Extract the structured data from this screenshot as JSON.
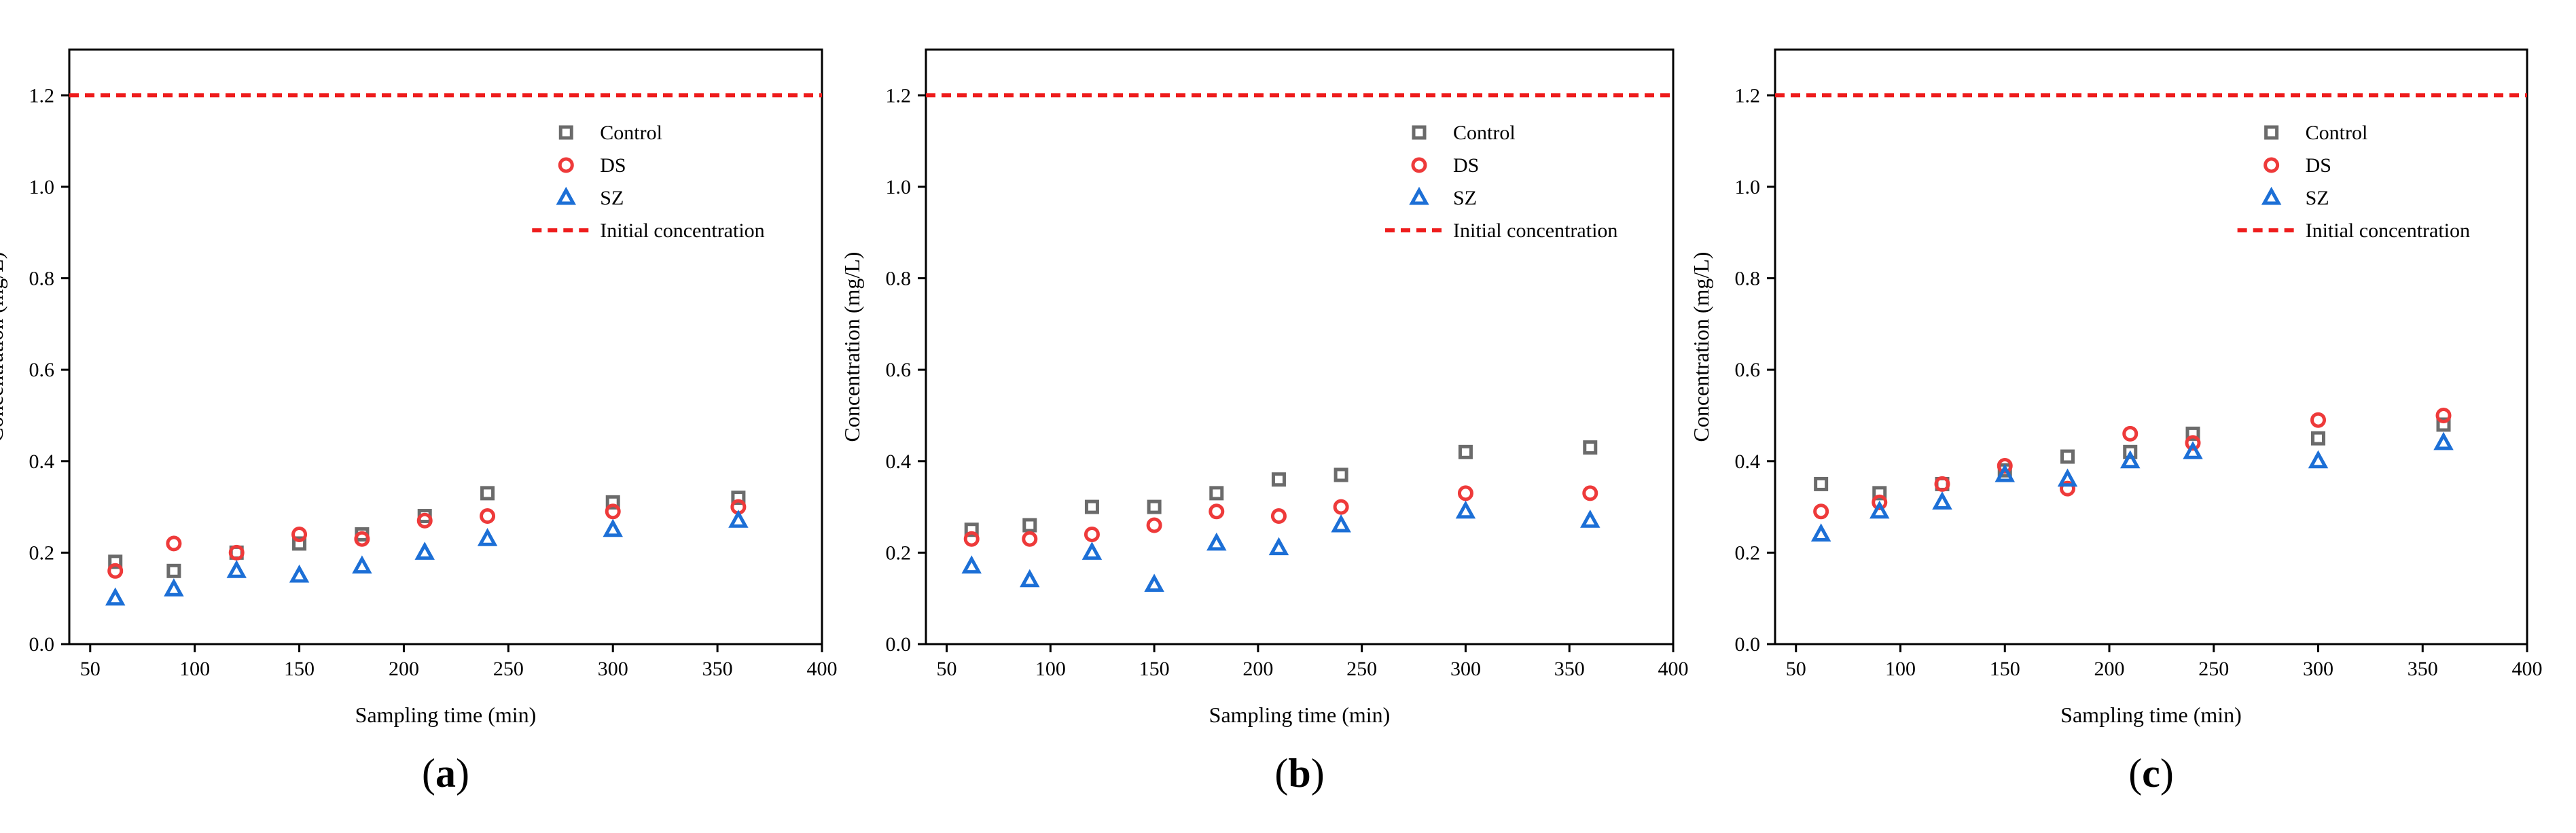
{
  "colors": {
    "control": "#6b6b6b",
    "ds": "#ee3a3a",
    "sz": "#1c6fd6",
    "initial": "#ee1c1c",
    "axis": "#000000"
  },
  "chart_data": [
    {
      "type": "scatter",
      "panel_label": "a",
      "xlabel": "Sampling time (min)",
      "ylabel": "Concentration (mg/L)",
      "xlim": [
        40,
        400
      ],
      "ylim": [
        0,
        1.3
      ],
      "xticks": [
        50,
        100,
        150,
        200,
        250,
        300,
        350,
        400
      ],
      "xtick_labels": [
        "50",
        "100",
        "150",
        "200",
        "250",
        "300",
        "350",
        "400"
      ],
      "yticks": [
        0.0,
        0.2,
        0.4,
        0.6,
        0.8,
        1.0,
        1.2
      ],
      "ytick_labels": [
        "0.0",
        "0.2",
        "0.4",
        "0.6",
        "0.8",
        "1.0",
        "1.2"
      ],
      "legend_position": "top-right",
      "x": [
        62,
        90,
        120,
        150,
        180,
        210,
        240,
        300,
        360
      ],
      "series": [
        {
          "name": "Control",
          "key": "control",
          "marker": "square",
          "values": [
            0.18,
            0.16,
            0.2,
            0.22,
            0.24,
            0.28,
            0.33,
            0.31,
            0.32
          ]
        },
        {
          "name": "DS",
          "key": "ds",
          "marker": "circle",
          "values": [
            0.16,
            0.22,
            0.2,
            0.24,
            0.23,
            0.27,
            0.28,
            0.29,
            0.3
          ]
        },
        {
          "name": "SZ",
          "key": "sz",
          "marker": "triangle",
          "values": [
            0.1,
            0.12,
            0.16,
            0.15,
            0.17,
            0.2,
            0.23,
            0.25,
            0.27
          ]
        }
      ],
      "reference_line": {
        "name": "Initial concentration",
        "y": 1.2
      }
    },
    {
      "type": "scatter",
      "panel_label": "b",
      "xlabel": "Sampling time (min)",
      "ylabel": "Concentration (mg/L)",
      "xlim": [
        40,
        400
      ],
      "ylim": [
        0,
        1.3
      ],
      "xticks": [
        50,
        100,
        150,
        200,
        250,
        300,
        350,
        400
      ],
      "xtick_labels": [
        "50",
        "100",
        "150",
        "200",
        "250",
        "300",
        "350",
        "400"
      ],
      "yticks": [
        0.0,
        0.2,
        0.4,
        0.6,
        0.8,
        1.0,
        1.2
      ],
      "ytick_labels": [
        "0.0",
        "0.2",
        "0.4",
        "0.6",
        "0.8",
        "1.0",
        "1.2"
      ],
      "legend_position": "top-right",
      "x": [
        62,
        90,
        120,
        150,
        180,
        210,
        240,
        300,
        360
      ],
      "series": [
        {
          "name": "Control",
          "key": "control",
          "marker": "square",
          "values": [
            0.25,
            0.26,
            0.3,
            0.3,
            0.33,
            0.36,
            0.37,
            0.42,
            0.43
          ]
        },
        {
          "name": "DS",
          "key": "ds",
          "marker": "circle",
          "values": [
            0.23,
            0.23,
            0.24,
            0.26,
            0.29,
            0.28,
            0.3,
            0.33,
            0.33
          ]
        },
        {
          "name": "SZ",
          "key": "sz",
          "marker": "triangle",
          "values": [
            0.17,
            0.14,
            0.2,
            0.13,
            0.22,
            0.21,
            0.26,
            0.29,
            0.27
          ]
        }
      ],
      "reference_line": {
        "name": "Initial concentration",
        "y": 1.2
      }
    },
    {
      "type": "scatter",
      "panel_label": "c",
      "xlabel": "Sampling time (min)",
      "ylabel": "Concentration (mg/L)",
      "xlim": [
        40,
        400
      ],
      "ylim": [
        0,
        1.3
      ],
      "xticks": [
        50,
        100,
        150,
        200,
        250,
        300,
        350,
        400
      ],
      "xtick_labels": [
        "50",
        "100",
        "150",
        "200",
        "250",
        "300",
        "350",
        "400"
      ],
      "yticks": [
        0.0,
        0.2,
        0.4,
        0.6,
        0.8,
        1.0,
        1.2
      ],
      "ytick_labels": [
        "0.0",
        "0.2",
        "0.4",
        "0.6",
        "0.8",
        "1.0",
        "1.2"
      ],
      "legend_position": "top-right",
      "x": [
        62,
        90,
        120,
        150,
        180,
        210,
        240,
        300,
        360
      ],
      "series": [
        {
          "name": "Control",
          "key": "control",
          "marker": "square",
          "values": [
            0.35,
            0.33,
            0.35,
            0.38,
            0.41,
            0.42,
            0.46,
            0.45,
            0.48
          ]
        },
        {
          "name": "DS",
          "key": "ds",
          "marker": "circle",
          "values": [
            0.29,
            0.31,
            0.35,
            0.39,
            0.34,
            0.46,
            0.44,
            0.49,
            0.5
          ]
        },
        {
          "name": "SZ",
          "key": "sz",
          "marker": "triangle",
          "values": [
            0.24,
            0.29,
            0.31,
            0.37,
            0.36,
            0.4,
            0.42,
            0.4,
            0.44
          ]
        }
      ],
      "reference_line": {
        "name": "Initial concentration",
        "y": 1.2
      }
    }
  ]
}
